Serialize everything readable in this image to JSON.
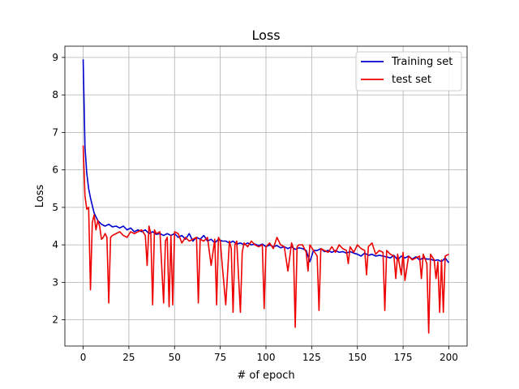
{
  "chart_data": {
    "type": "line",
    "title": "Loss",
    "xlabel": "# of epoch",
    "ylabel": "Loss",
    "xlim": [
      -10,
      210
    ],
    "ylim": [
      1.3,
      9.3
    ],
    "xticks": [
      0,
      25,
      50,
      75,
      100,
      125,
      150,
      175,
      200
    ],
    "yticks": [
      2,
      3,
      4,
      5,
      6,
      7,
      8,
      9
    ],
    "grid": true,
    "legend_position": "top-right",
    "series": [
      {
        "name": "Training set",
        "color": "#0000cc",
        "x": [
          0,
          1,
          2,
          3,
          4,
          5,
          6,
          7,
          8,
          9,
          10,
          12,
          14,
          16,
          18,
          20,
          22,
          24,
          26,
          28,
          30,
          32,
          34,
          36,
          38,
          40,
          42,
          44,
          46,
          48,
          50,
          52,
          54,
          56,
          58,
          60,
          62,
          64,
          66,
          68,
          70,
          72,
          74,
          76,
          78,
          80,
          82,
          84,
          86,
          88,
          90,
          92,
          94,
          96,
          98,
          100,
          102,
          104,
          106,
          108,
          110,
          112,
          114,
          116,
          118,
          120,
          122,
          124,
          126,
          128,
          130,
          132,
          134,
          136,
          138,
          140,
          142,
          144,
          146,
          148,
          150,
          152,
          154,
          156,
          158,
          160,
          162,
          164,
          166,
          168,
          170,
          172,
          174,
          176,
          178,
          180,
          182,
          184,
          186,
          188,
          190,
          192,
          194,
          196,
          198,
          200
        ],
        "values": [
          8.95,
          6.6,
          5.9,
          5.5,
          5.25,
          5.05,
          4.85,
          4.75,
          4.65,
          4.6,
          4.55,
          4.5,
          4.55,
          4.48,
          4.5,
          4.45,
          4.5,
          4.4,
          4.45,
          4.35,
          4.4,
          4.35,
          4.4,
          4.3,
          4.35,
          4.28,
          4.3,
          4.25,
          4.3,
          4.25,
          4.3,
          4.2,
          4.25,
          4.15,
          4.3,
          4.1,
          4.2,
          4.15,
          4.25,
          4.1,
          4.15,
          4.05,
          4.15,
          4.1,
          4.1,
          4.05,
          4.1,
          4.02,
          4.05,
          4.0,
          4.05,
          4.0,
          4.02,
          3.98,
          4.02,
          3.95,
          4.0,
          3.95,
          3.98,
          3.92,
          3.95,
          3.9,
          3.95,
          3.88,
          3.92,
          3.9,
          3.85,
          3.55,
          3.85,
          3.85,
          3.9,
          3.82,
          3.85,
          3.8,
          3.85,
          3.8,
          3.82,
          3.78,
          3.82,
          3.78,
          3.75,
          3.7,
          3.78,
          3.72,
          3.75,
          3.7,
          3.72,
          3.7,
          3.68,
          3.65,
          3.72,
          3.6,
          3.7,
          3.65,
          3.7,
          3.62,
          3.68,
          3.6,
          3.65,
          3.62,
          3.62,
          3.58,
          3.6,
          3.55,
          3.65,
          3.52
        ]
      },
      {
        "name": "test set",
        "color": "#ee0000",
        "x": [
          0,
          1,
          2,
          3,
          4,
          5,
          6,
          7,
          8,
          9,
          10,
          11,
          12,
          13,
          14,
          15,
          16,
          18,
          20,
          22,
          24,
          26,
          28,
          30,
          32,
          34,
          35,
          36,
          37,
          38,
          39,
          40,
          42,
          44,
          45,
          46,
          47,
          48,
          49,
          50,
          52,
          54,
          56,
          58,
          60,
          62,
          63,
          64,
          66,
          68,
          70,
          72,
          73,
          74,
          75,
          76,
          78,
          80,
          81,
          82,
          83,
          84,
          86,
          87,
          88,
          90,
          92,
          94,
          96,
          98,
          99,
          100,
          102,
          104,
          106,
          108,
          110,
          112,
          114,
          115,
          116,
          117,
          118,
          120,
          122,
          123,
          124,
          126,
          128,
          129,
          130,
          132,
          134,
          136,
          138,
          140,
          142,
          144,
          145,
          146,
          148,
          150,
          152,
          154,
          155,
          156,
          158,
          160,
          162,
          164,
          165,
          166,
          168,
          170,
          171,
          172,
          174,
          175,
          176,
          178,
          180,
          182,
          184,
          185,
          186,
          188,
          189,
          190,
          192,
          193,
          194,
          195,
          196,
          197,
          198,
          200
        ],
        "values": [
          6.65,
          5.3,
          4.95,
          5.0,
          2.8,
          4.6,
          4.8,
          4.4,
          4.65,
          4.5,
          4.15,
          4.2,
          4.3,
          4.2,
          2.45,
          4.2,
          4.25,
          4.3,
          4.35,
          4.25,
          4.2,
          4.35,
          4.3,
          4.35,
          4.4,
          4.25,
          3.45,
          4.5,
          4.3,
          2.4,
          4.4,
          4.3,
          4.35,
          2.45,
          4.1,
          4.2,
          2.35,
          4.25,
          2.4,
          4.35,
          4.3,
          4.05,
          4.2,
          4.1,
          4.15,
          4.2,
          2.45,
          4.15,
          4.1,
          4.2,
          3.45,
          4.15,
          2.4,
          4.2,
          4.1,
          3.5,
          2.4,
          4.1,
          3.9,
          2.2,
          4.0,
          4.1,
          2.2,
          3.8,
          4.05,
          3.95,
          4.1,
          4.0,
          3.95,
          4.0,
          2.3,
          3.95,
          4.05,
          3.9,
          4.2,
          4.0,
          3.95,
          3.3,
          4.05,
          3.9,
          1.8,
          3.95,
          4.0,
          4.0,
          3.8,
          3.3,
          4.0,
          3.85,
          3.7,
          2.25,
          3.9,
          3.85,
          3.8,
          3.95,
          3.8,
          4.0,
          3.9,
          3.85,
          3.5,
          3.95,
          3.8,
          4.0,
          3.9,
          3.85,
          3.2,
          3.95,
          4.05,
          3.75,
          3.85,
          3.8,
          2.25,
          3.85,
          3.75,
          3.7,
          3.1,
          3.75,
          3.2,
          3.8,
          3.05,
          3.7,
          3.6,
          3.65,
          3.7,
          3.1,
          3.75,
          3.5,
          1.65,
          3.75,
          3.6,
          3.1,
          3.55,
          2.2,
          3.6,
          2.2,
          3.7,
          3.75
        ]
      }
    ]
  }
}
